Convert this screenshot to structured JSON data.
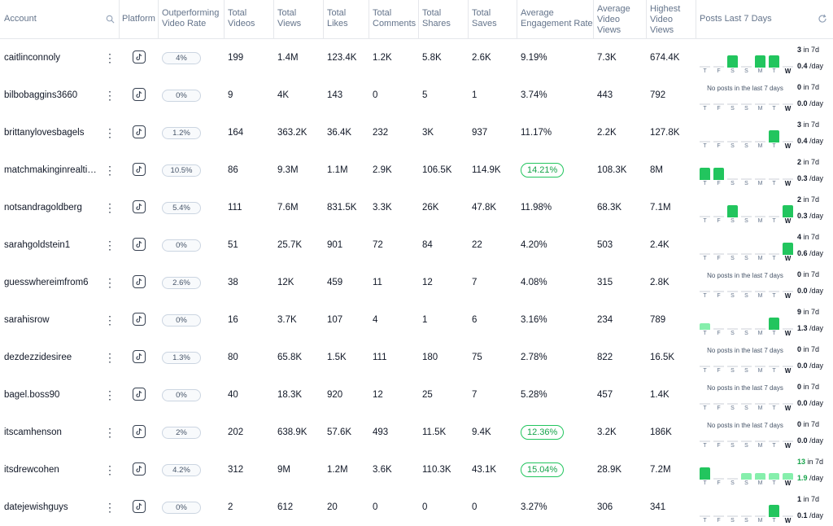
{
  "headers": {
    "account": "Account",
    "platform": "Platform",
    "outperforming": [
      "Outperforming",
      "Video Rate"
    ],
    "total_videos": [
      "Total",
      "Videos"
    ],
    "total_views": [
      "Total",
      "Views"
    ],
    "total_likes": [
      "Total",
      "Likes"
    ],
    "total_comments": [
      "Total",
      "Comments"
    ],
    "total_shares": [
      "Total",
      "Shares"
    ],
    "total_saves": [
      "Total",
      "Saves"
    ],
    "avg_engagement": [
      "Average",
      "Engagement Rate"
    ],
    "avg_video_views": [
      "Average",
      "Video",
      "Views"
    ],
    "highest_video_views": [
      "Highest",
      "Video",
      "Views"
    ],
    "posts_last_7": "Posts Last 7 Days"
  },
  "day_labels": [
    "T",
    "F",
    "S",
    "S",
    "M",
    "T",
    "W"
  ],
  "no_posts_text": "No posts in the last 7 days",
  "accent_green": "#22c55e",
  "rows": [
    {
      "account": "caitlinconnoly",
      "outperf": "4%",
      "videos": "199",
      "views": "1.4M",
      "likes": "123.4K",
      "comments": "1.2K",
      "shares": "5.8K",
      "saves": "2.6K",
      "eng": "9.19%",
      "eng_highlight": false,
      "avg_views": "7.3K",
      "highest": "674.4K",
      "posts": [
        0,
        0,
        1,
        0,
        1,
        1,
        0
      ],
      "in7": "3",
      "per_day": "0.4",
      "hot": false
    },
    {
      "account": "bilbobaggins3660",
      "outperf": "0%",
      "videos": "9",
      "views": "4K",
      "likes": "143",
      "comments": "0",
      "shares": "5",
      "saves": "1",
      "eng": "3.74%",
      "eng_highlight": false,
      "avg_views": "443",
      "highest": "792",
      "posts": [
        0,
        0,
        0,
        0,
        0,
        0,
        0
      ],
      "in7": "0",
      "per_day": "0.0",
      "hot": false
    },
    {
      "account": "brittanylovesbagels",
      "outperf": "1.2%",
      "videos": "164",
      "views": "363.2K",
      "likes": "36.4K",
      "comments": "232",
      "shares": "3K",
      "saves": "937",
      "eng": "11.17%",
      "eng_highlight": false,
      "avg_views": "2.2K",
      "highest": "127.8K",
      "posts": [
        0,
        0,
        0,
        0,
        0,
        1,
        0
      ],
      "in7": "3",
      "per_day": "0.4",
      "hot": false
    },
    {
      "account": "matchmakinginrealtime",
      "outperf": "10.5%",
      "videos": "86",
      "views": "9.3M",
      "likes": "1.1M",
      "comments": "2.9K",
      "shares": "106.5K",
      "saves": "114.9K",
      "eng": "14.21%",
      "eng_highlight": true,
      "avg_views": "108.3K",
      "highest": "8M",
      "posts": [
        1,
        1,
        0,
        0,
        0,
        0,
        0
      ],
      "in7": "2",
      "per_day": "0.3",
      "hot": false
    },
    {
      "account": "notsandragoldberg",
      "outperf": "5.4%",
      "videos": "111",
      "views": "7.6M",
      "likes": "831.5K",
      "comments": "3.3K",
      "shares": "26K",
      "saves": "47.8K",
      "eng": "11.98%",
      "eng_highlight": false,
      "avg_views": "68.3K",
      "highest": "7.1M",
      "posts": [
        0,
        0,
        1,
        0,
        0,
        0,
        1
      ],
      "in7": "2",
      "per_day": "0.3",
      "hot": false
    },
    {
      "account": "sarahgoldstein1",
      "outperf": "0%",
      "videos": "51",
      "views": "25.7K",
      "likes": "901",
      "comments": "72",
      "shares": "84",
      "saves": "22",
      "eng": "4.20%",
      "eng_highlight": false,
      "avg_views": "503",
      "highest": "2.4K",
      "posts": [
        0,
        0,
        0,
        0,
        0,
        0,
        1
      ],
      "in7": "4",
      "per_day": "0.6",
      "hot": false
    },
    {
      "account": "guesswhereimfrom6",
      "outperf": "2.6%",
      "videos": "38",
      "views": "12K",
      "likes": "459",
      "comments": "11",
      "shares": "12",
      "saves": "7",
      "eng": "4.08%",
      "eng_highlight": false,
      "avg_views": "315",
      "highest": "2.8K",
      "posts": [
        0,
        0,
        0,
        0,
        0,
        0,
        0
      ],
      "in7": "0",
      "per_day": "0.0",
      "hot": false
    },
    {
      "account": "sarahisrow",
      "outperf": "0%",
      "videos": "16",
      "views": "3.7K",
      "likes": "107",
      "comments": "4",
      "shares": "1",
      "saves": "6",
      "eng": "3.16%",
      "eng_highlight": false,
      "avg_views": "234",
      "highest": "789",
      "posts": [
        0.5,
        0,
        0,
        0,
        0,
        1,
        0
      ],
      "in7": "9",
      "per_day": "1.3",
      "hot": false
    },
    {
      "account": "dezdezzidesiree",
      "outperf": "1.3%",
      "videos": "80",
      "views": "65.8K",
      "likes": "1.5K",
      "comments": "111",
      "shares": "180",
      "saves": "75",
      "eng": "2.78%",
      "eng_highlight": false,
      "avg_views": "822",
      "highest": "16.5K",
      "posts": [
        0,
        0,
        0,
        0,
        0,
        0,
        0
      ],
      "in7": "0",
      "per_day": "0.0",
      "hot": false
    },
    {
      "account": "bagel.boss90",
      "outperf": "0%",
      "videos": "40",
      "views": "18.3K",
      "likes": "920",
      "comments": "12",
      "shares": "25",
      "saves": "7",
      "eng": "5.28%",
      "eng_highlight": false,
      "avg_views": "457",
      "highest": "1.4K",
      "posts": [
        0,
        0,
        0,
        0,
        0,
        0,
        0
      ],
      "in7": "0",
      "per_day": "0.0",
      "hot": false
    },
    {
      "account": "itscamhenson",
      "outperf": "2%",
      "videos": "202",
      "views": "638.9K",
      "likes": "57.6K",
      "comments": "493",
      "shares": "11.5K",
      "saves": "9.4K",
      "eng": "12.36%",
      "eng_highlight": true,
      "avg_views": "3.2K",
      "highest": "186K",
      "posts": [
        0,
        0,
        0,
        0,
        0,
        0,
        0
      ],
      "in7": "0",
      "per_day": "0.0",
      "hot": false
    },
    {
      "account": "itsdrewcohen",
      "outperf": "4.2%",
      "videos": "312",
      "views": "9M",
      "likes": "1.2M",
      "comments": "3.6K",
      "shares": "110.3K",
      "saves": "43.1K",
      "eng": "15.04%",
      "eng_highlight": true,
      "avg_views": "28.9K",
      "highest": "7.2M",
      "posts": [
        1,
        0,
        0,
        0.5,
        0.5,
        0.5,
        0.5
      ],
      "in7": "13",
      "per_day": "1.9",
      "hot": true
    },
    {
      "account": "datejewishguys",
      "outperf": "0%",
      "videos": "2",
      "views": "612",
      "likes": "20",
      "comments": "0",
      "shares": "0",
      "saves": "0",
      "eng": "3.27%",
      "eng_highlight": false,
      "avg_views": "306",
      "highest": "341",
      "posts": [
        0,
        0,
        0,
        0,
        0,
        1,
        0
      ],
      "in7": "1",
      "per_day": "0.1",
      "hot": false
    }
  ]
}
